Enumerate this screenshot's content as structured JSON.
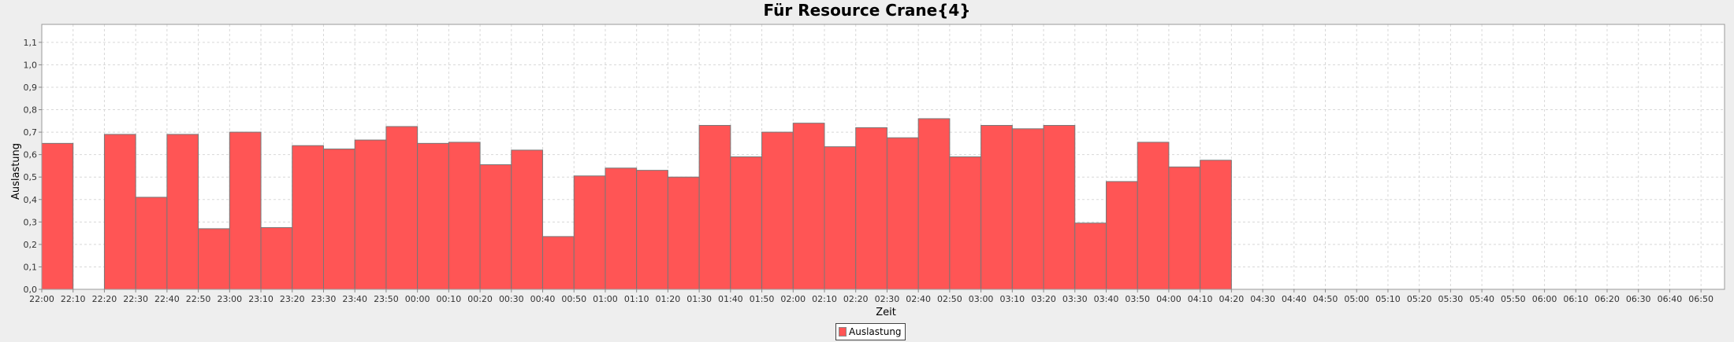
{
  "colors": {
    "bar_fill": "#ff5555",
    "bar_stroke": "#777777",
    "grid": "#d8d8d8",
    "plot_bg": "#ffffff",
    "background": "#eeeeee"
  },
  "chart_data": {
    "type": "bar",
    "title": "Für Resource Crane{4}",
    "xlabel": "Zeit",
    "ylabel": "Auslastung",
    "ylim": [
      0,
      1.18
    ],
    "yticks": [
      "0,0",
      "0,1",
      "0,2",
      "0,3",
      "0,4",
      "0,5",
      "0,6",
      "0,7",
      "0,8",
      "0,9",
      "1,0",
      "1,1"
    ],
    "grid": true,
    "legend_position": "bottom",
    "categories": [
      "22:00",
      "22:10",
      "22:20",
      "22:30",
      "22:40",
      "22:50",
      "23:00",
      "23:10",
      "23:20",
      "23:30",
      "23:40",
      "23:50",
      "00:00",
      "00:10",
      "00:20",
      "00:30",
      "00:40",
      "00:50",
      "01:00",
      "01:10",
      "01:20",
      "01:30",
      "01:40",
      "01:50",
      "02:00",
      "02:10",
      "02:20",
      "02:30",
      "02:40",
      "02:50",
      "03:00",
      "03:10",
      "03:20",
      "03:30",
      "03:40",
      "03:50",
      "04:00",
      "04:10",
      "04:20",
      "04:30",
      "04:40",
      "04:50",
      "05:00",
      "05:10",
      "05:20",
      "05:30",
      "05:40",
      "05:50",
      "06:00",
      "06:10",
      "06:20",
      "06:30",
      "06:40",
      "06:50"
    ],
    "series": [
      {
        "name": "Auslastung",
        "values": [
          0.65,
          0,
          0.69,
          0.41,
          0.69,
          0.27,
          0.7,
          0.275,
          0.64,
          0.625,
          0.665,
          0.725,
          0.65,
          0.655,
          0.555,
          0.62,
          0.235,
          0.505,
          0.54,
          0.53,
          0.5,
          0.73,
          0.59,
          0.7,
          0.74,
          0.635,
          0.72,
          0.675,
          0.76,
          0.59,
          0.73,
          0.715,
          0.73,
          0.295,
          0.48,
          0.655,
          0.545,
          0.575,
          null,
          null,
          null,
          null,
          null,
          null,
          null,
          null,
          null,
          null,
          null,
          null,
          null,
          null,
          null,
          null
        ]
      }
    ]
  }
}
